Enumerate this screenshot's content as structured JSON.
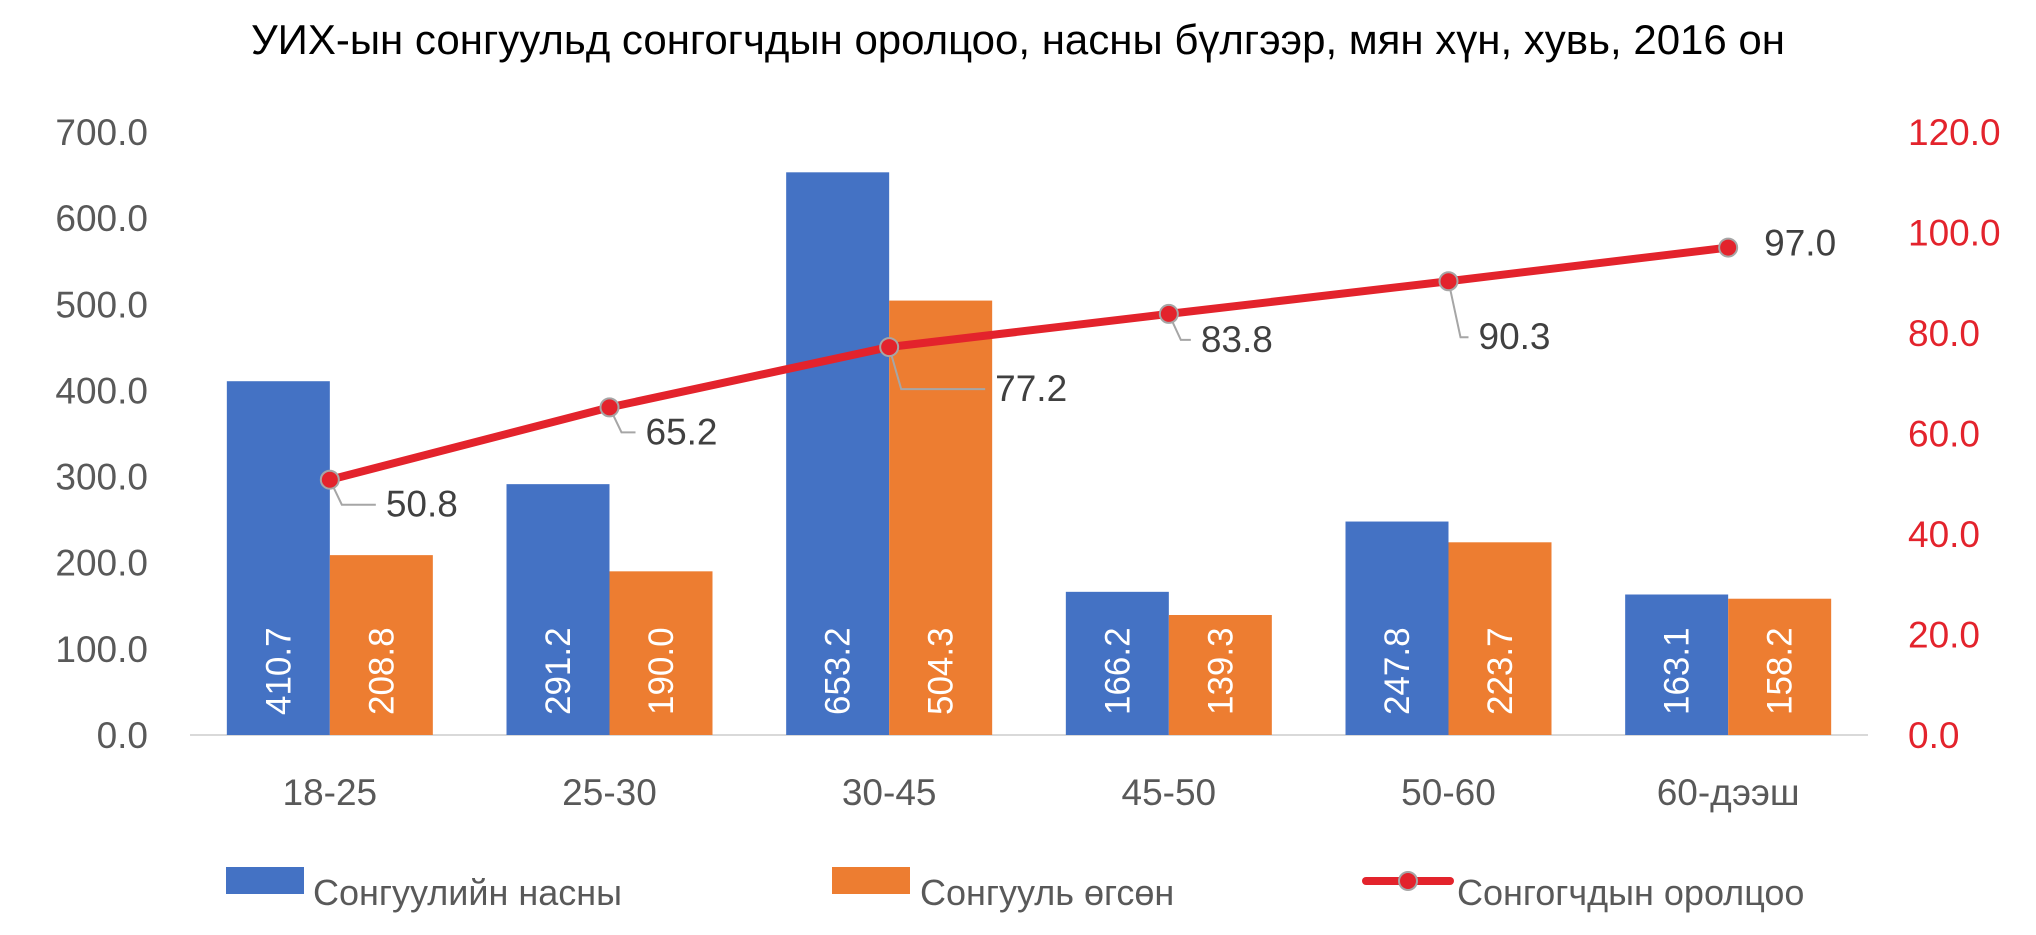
{
  "chart_data": {
    "type": "bar",
    "title": "УИХ-ын сонгуульд сонгогчдын оролцоо, насны бүлгээр, мян хүн, хувь, 2016 он",
    "categories": [
      "18-25",
      "25-30",
      "30-45",
      "45-50",
      "50-60",
      "60-дээш"
    ],
    "series": [
      {
        "name": "Сонгуулийн насны",
        "type": "bar",
        "axis": "left",
        "color": "#4472c4",
        "values": [
          410.7,
          291.2,
          653.2,
          166.2,
          247.8,
          163.1
        ],
        "labels": [
          "410.7",
          "291.2",
          "653.2",
          "166.2",
          "247.8",
          "163.1"
        ]
      },
      {
        "name": "Сонгууль өгсөн",
        "type": "bar",
        "axis": "left",
        "color": "#ed7d31",
        "values": [
          208.8,
          190.0,
          504.3,
          139.3,
          223.7,
          158.2
        ],
        "labels": [
          "208.8",
          "190.0",
          "504.3",
          "139.3",
          "223.7",
          "158.2"
        ]
      },
      {
        "name": "Сонгогчдын оролцоо",
        "type": "line",
        "axis": "right",
        "color": "#e3232c",
        "values": [
          50.8,
          65.2,
          77.2,
          83.8,
          90.3,
          97.0
        ],
        "labels": [
          "50.8",
          "65.2",
          "77.2",
          "83.8",
          "90.3",
          "97.0"
        ]
      }
    ],
    "y_left": {
      "range": [
        0,
        700
      ],
      "ticks": [
        "0.0",
        "100.0",
        "200.0",
        "300.0",
        "400.0",
        "500.0",
        "600.0",
        "700.0"
      ]
    },
    "y_right": {
      "range": [
        0,
        120
      ],
      "ticks": [
        "0.0",
        "20.0",
        "40.0",
        "60.0",
        "80.0",
        "100.0",
        "120.0"
      ],
      "color": "#e3232c"
    },
    "grid": false,
    "legend_position": "bottom"
  }
}
